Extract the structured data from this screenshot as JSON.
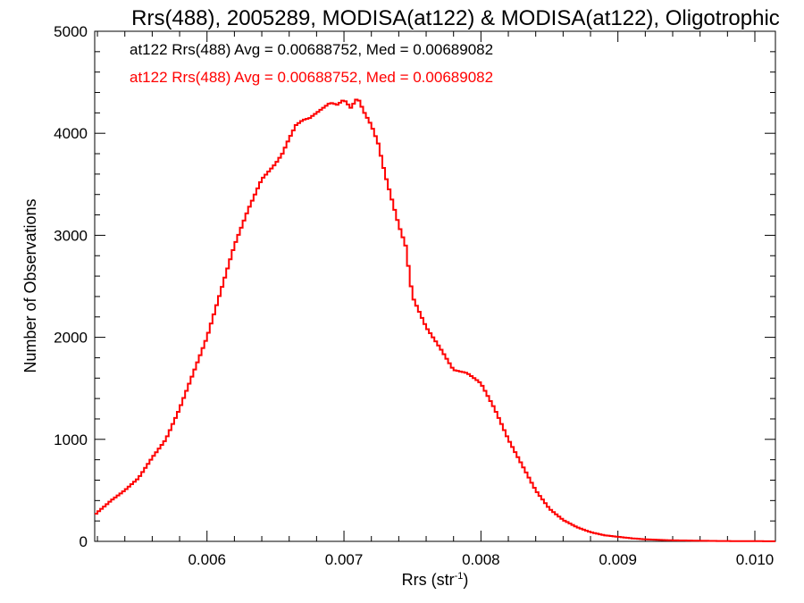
{
  "chart_data": {
    "type": "line",
    "title": "Rrs(488), 2005289, MODISA(at122) & MODISA(at122), Oligotrophic",
    "xlabel": "Rrs (str",
    "xlabel_sup": "-1",
    "xlabel_close": ")",
    "ylabel": "Number of Observations",
    "xlim": [
      0.00518,
      0.01015
    ],
    "ylim": [
      0,
      5000
    ],
    "xticks": [
      0.006,
      0.007,
      0.008,
      0.009,
      0.01
    ],
    "xtick_labels": [
      "0.006",
      "0.007",
      "0.008",
      "0.009",
      "0.010"
    ],
    "yticks": [
      0,
      1000,
      2000,
      3000,
      4000,
      5000
    ],
    "ytick_labels": [
      "0",
      "1000",
      "2000",
      "3000",
      "4000",
      "5000"
    ],
    "grid": false,
    "annotations": [
      {
        "text": "at122 Rrs(488) Avg = 0.00688752, Med = 0.00689082",
        "color": "#000000"
      },
      {
        "text": "at122 Rrs(488) Avg = 0.00688752, Med = 0.00689082",
        "color": "#ff0000"
      }
    ],
    "series": [
      {
        "color": "#ff0000",
        "step": true,
        "x": [
          0.00518,
          0.0053,
          0.0054,
          0.0055,
          0.0056,
          0.0057,
          0.0058,
          0.0059,
          0.006,
          0.0061,
          0.0062,
          0.0063,
          0.0064,
          0.0065,
          0.00655,
          0.0066,
          0.00665,
          0.0067,
          0.00675,
          0.0068,
          0.00685,
          0.0069,
          0.00695,
          0.007,
          0.00705,
          0.0071,
          0.00715,
          0.0072,
          0.00725,
          0.0073,
          0.0074,
          0.00745,
          0.0075,
          0.0076,
          0.0077,
          0.0078,
          0.0079,
          0.008,
          0.0081,
          0.0082,
          0.0083,
          0.0084,
          0.0085,
          0.0086,
          0.0087,
          0.0088,
          0.0089,
          0.009,
          0.0091,
          0.0092,
          0.0093,
          0.0094,
          0.0095,
          0.0096,
          0.0097,
          0.0098,
          0.0099,
          0.01,
          0.01015
        ],
        "y": [
          260,
          400,
          500,
          620,
          820,
          1000,
          1300,
          1650,
          2000,
          2450,
          2900,
          3250,
          3550,
          3700,
          3800,
          3950,
          4080,
          4130,
          4150,
          4200,
          4250,
          4300,
          4280,
          4330,
          4250,
          4350,
          4200,
          4080,
          3900,
          3600,
          3100,
          2900,
          2400,
          2100,
          1900,
          1680,
          1650,
          1550,
          1300,
          1000,
          750,
          500,
          320,
          210,
          140,
          90,
          60,
          45,
          30,
          20,
          15,
          10,
          8,
          6,
          4,
          3,
          2,
          2,
          1
        ]
      }
    ]
  }
}
